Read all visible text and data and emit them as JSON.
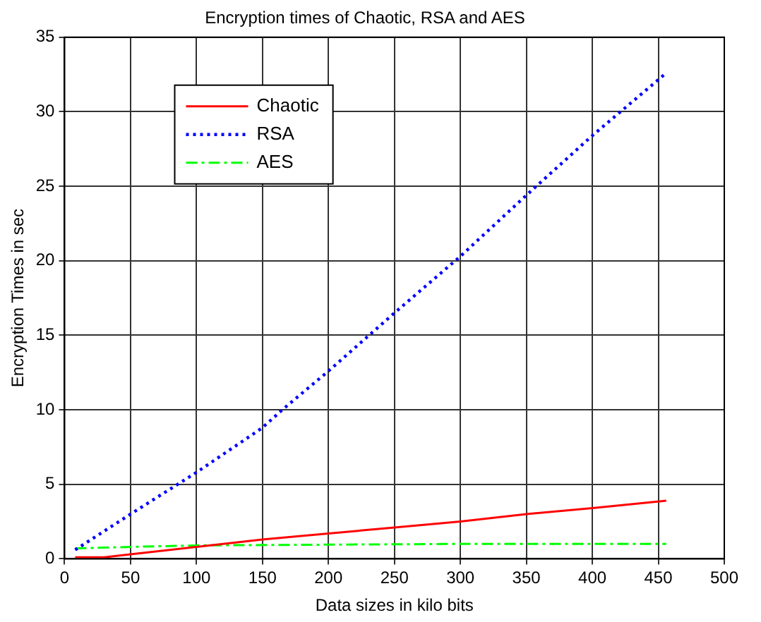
{
  "chart_data": {
    "type": "line",
    "title": "Encryption times of Chaotic, RSA and AES",
    "xlabel": "Data sizes in kilo bits",
    "ylabel": "Encryption Times in sec",
    "xlim": [
      0,
      500
    ],
    "xticks": [
      0,
      50,
      100,
      150,
      200,
      250,
      300,
      350,
      400,
      450,
      500
    ],
    "ylim": [
      0,
      35
    ],
    "yticks": [
      0,
      5,
      10,
      15,
      20,
      25,
      30,
      35
    ],
    "grid": true,
    "legend": "top left",
    "marker": "none",
    "series": [
      {
        "name": "Chaotic",
        "color": "#ff0000",
        "line_style": "solid",
        "x": [
          8,
          30,
          50,
          100,
          150,
          200,
          250,
          300,
          350,
          400,
          456
        ],
        "values": [
          0.1,
          0.1,
          0.3,
          0.8,
          1.3,
          1.7,
          2.1,
          2.5,
          3.0,
          3.4,
          3.9
        ]
      },
      {
        "name": "RSA",
        "color": "#0000ff",
        "line_style": "dotted",
        "x": [
          8,
          50,
          100,
          150,
          165,
          200,
          250,
          300,
          350,
          400,
          456
        ],
        "values": [
          0.6,
          3.0,
          5.8,
          8.8,
          10,
          12.6,
          16.5,
          20.3,
          24.4,
          28.4,
          32.6
        ]
      },
      {
        "name": "AES",
        "color": "#00ff00",
        "line_style": "dashdot",
        "x": [
          8,
          50,
          100,
          200,
          300,
          456
        ],
        "values": [
          0.7,
          0.8,
          0.9,
          0.95,
          1.0,
          1.0
        ]
      }
    ]
  }
}
